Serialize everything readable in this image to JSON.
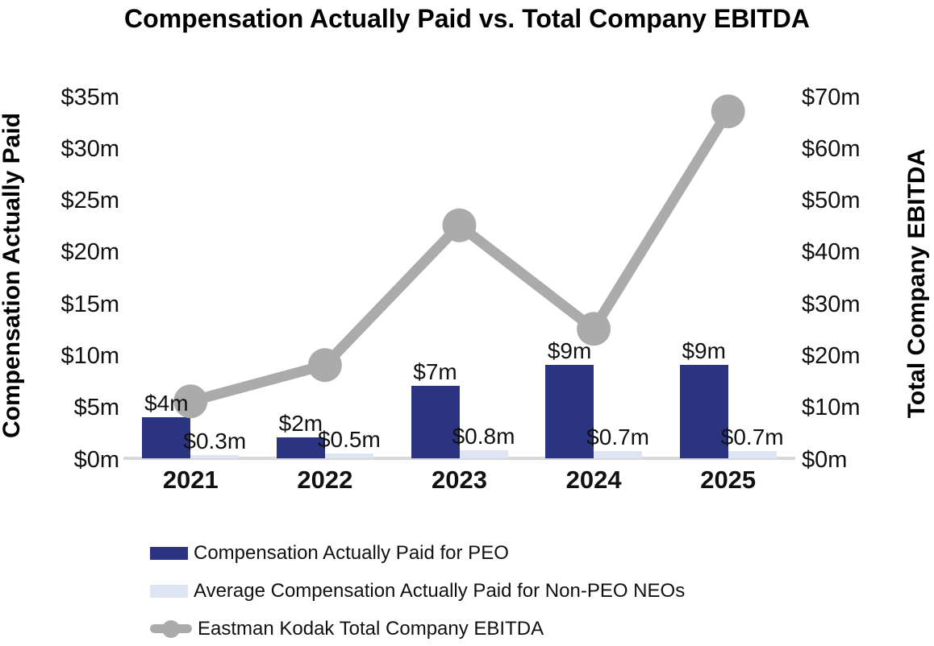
{
  "chart_data": {
    "type": "bar",
    "combo": "dual-axis bars + line",
    "title": "Compensation Actually Paid vs. Total Company EBITDA",
    "categories": [
      "2021",
      "2022",
      "2023",
      "2024",
      "2025"
    ],
    "series": [
      {
        "name": "Compensation Actually Paid for PEO",
        "type": "bar",
        "axis": "left",
        "color": "#2A3480",
        "values": [
          4,
          2,
          7,
          9,
          9
        ],
        "labels": [
          "$4m",
          "$2m",
          "$7m",
          "$9m",
          "$9m"
        ]
      },
      {
        "name": "Average Compensation Actually Paid for Non-PEO NEOs",
        "type": "bar",
        "axis": "left",
        "color": "#DDE5F3",
        "values": [
          0.3,
          0.5,
          0.8,
          0.7,
          0.7
        ],
        "labels": [
          "$0.3m",
          "$0.5m",
          "$0.8m",
          "$0.7m",
          "$0.7m"
        ]
      },
      {
        "name": "Eastman Kodak Total Company EBITDA",
        "type": "line",
        "axis": "right",
        "color": "#ABABAB",
        "values": [
          11,
          18,
          45,
          25,
          67
        ],
        "values_estimated": true
      }
    ],
    "left_axis": {
      "title": "Compensation Actually Paid",
      "tick_labels": [
        "$0m",
        "$5m",
        "$10m",
        "$15m",
        "$20m",
        "$25m",
        "$30m",
        "$35m"
      ],
      "tick_values": [
        0,
        5,
        10,
        15,
        20,
        25,
        30,
        35
      ],
      "min": 0,
      "max": 35
    },
    "right_axis": {
      "title": "Total Company EBITDA",
      "tick_labels": [
        "$0m",
        "$10m",
        "$20m",
        "$30m",
        "$40m",
        "$50m",
        "$60m",
        "$70m"
      ],
      "tick_values": [
        0,
        10,
        20,
        30,
        40,
        50,
        60,
        70
      ],
      "min": 0,
      "max": 70
    },
    "legend_position": "bottom-left",
    "grid": false,
    "colors": {
      "bar_peo": "#2A3480",
      "bar_neo": "#DDE5F3",
      "line_ebitda": "#ABABAB",
      "axis_line": "#D9D9D9",
      "text": "#000000"
    }
  }
}
